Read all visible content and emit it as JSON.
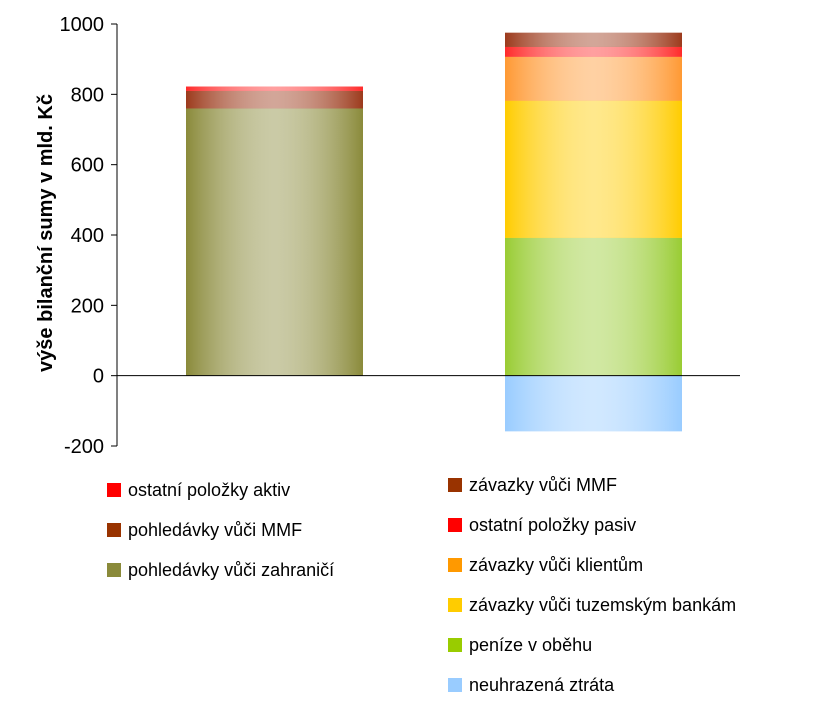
{
  "chart_data": {
    "type": "bar",
    "stacked": true,
    "categories": [
      "",
      ""
    ],
    "ylabel": "výše bilanční sumy v mld. Kč",
    "ylim": [
      -200,
      1000
    ],
    "yticks": [
      "1000",
      "800",
      "600",
      "400",
      "200",
      "0",
      "-200"
    ],
    "grid": false,
    "legend_position": "bottom",
    "stacks": [
      {
        "series": [
          {
            "name": "pohledávky vůči zahraničí",
            "value": 760,
            "color": "#8a8a3a"
          },
          {
            "name": "pohledávky vůči MMF",
            "value": 50,
            "color": "#9c3a1c"
          },
          {
            "name": "ostatní položky aktiv",
            "value": 12,
            "color": "#ff2a2a"
          }
        ]
      },
      {
        "series": [
          {
            "name": "neuhrazená ztráta",
            "value": -158,
            "color": "#99ccff"
          },
          {
            "name": "peníze v oběhu",
            "value": 392,
            "color": "#99cc33"
          },
          {
            "name": "závazky vůči tuzemským bankám",
            "value": 390,
            "color": "#ffcc00"
          },
          {
            "name": "závazky vůči klientům",
            "value": 125,
            "color": "#ff9933"
          },
          {
            "name": "ostatní položky pasiv",
            "value": 28,
            "color": "#ff2a2a"
          },
          {
            "name": "závazky vůči MMF",
            "value": 40,
            "color": "#9c3a1c"
          }
        ]
      }
    ]
  },
  "legend": {
    "left": [
      {
        "label": "ostatní položky aktiv",
        "color": "#ff0000"
      },
      {
        "label": "pohledávky vůči MMF",
        "color": "#993300"
      },
      {
        "label": "pohledávky vůči zahraničí",
        "color": "#8a8a3a"
      }
    ],
    "right": [
      {
        "label": "závazky vůči MMF",
        "color": "#993300"
      },
      {
        "label": "ostatní položky pasiv",
        "color": "#ff0000"
      },
      {
        "label": "závazky vůči klientům",
        "color": "#ff9900"
      },
      {
        "label": "závazky vůči tuzemským bankám",
        "color": "#ffcc00"
      },
      {
        "label": "peníze v oběhu",
        "color": "#99cc00"
      },
      {
        "label": "neuhrazená ztráta",
        "color": "#99ccff"
      }
    ]
  }
}
